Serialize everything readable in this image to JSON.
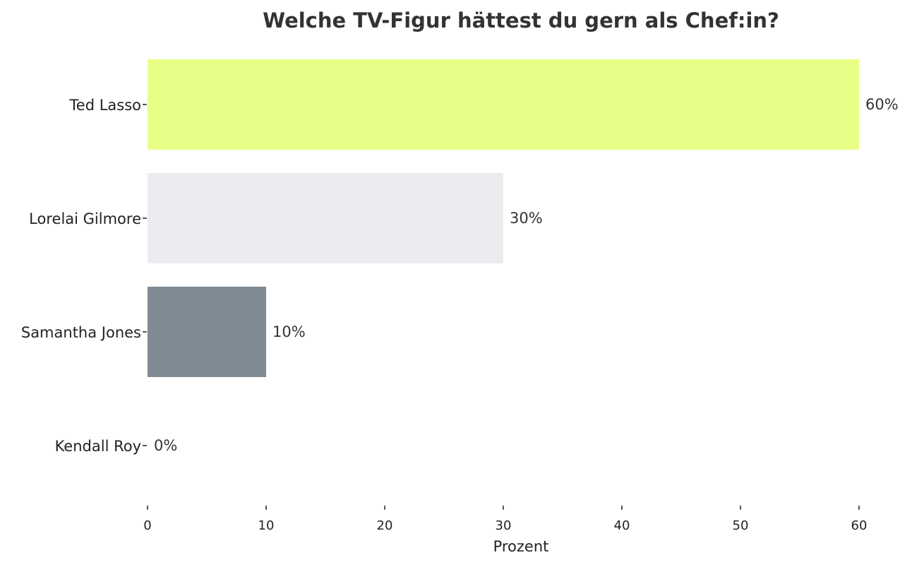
{
  "chart_data": {
    "type": "bar",
    "orientation": "horizontal",
    "title": "Welche TV-Figur hättest du gern als Chef:in?",
    "xlabel": "Prozent",
    "ylabel": "",
    "categories": [
      "Ted Lasso",
      "Lorelai Gilmore",
      "Samantha Jones",
      "Kendall Roy"
    ],
    "values": [
      60,
      30,
      10,
      0
    ],
    "data_labels": [
      "60%",
      "30%",
      "10%",
      "0%"
    ],
    "colors": [
      "#e8ff87",
      "#ebecf0",
      "#7f8a94",
      "#f2f2f2"
    ],
    "xlim": [
      0,
      60
    ],
    "xticks": [
      0,
      10,
      20,
      30,
      40,
      50,
      60
    ],
    "grid": false,
    "legend": "none"
  },
  "text_color": "#333333"
}
